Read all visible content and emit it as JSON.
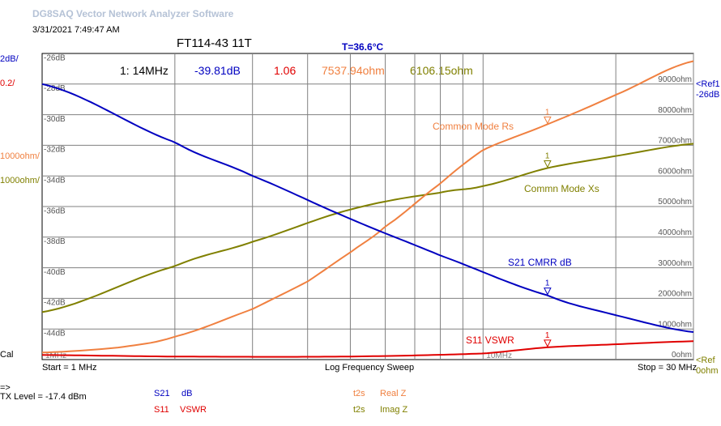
{
  "app": {
    "title": "DG8SAQ Vector Network Analyzer Software",
    "datetime": "3/31/2021   7:49:47 AM"
  },
  "chart": {
    "title": "FT114-43 11T",
    "temperature": "T=36.6°C"
  },
  "marker_readout": {
    "label": "1: 14MHz",
    "s21": "-39.81dB",
    "vswr": "1.06",
    "real_z": "7537.94ohm",
    "imag_z": "6106.15ohm"
  },
  "left_scales": {
    "s21_scale": "2dB/",
    "vswr_scale": "0.2/",
    "real_scale": "1000ohm/",
    "imag_scale": "1000ohm/",
    "cal": "Cal"
  },
  "right_scales": {
    "ref1": "<Ref1",
    "ref1_value": "-26dB",
    "ref2": "<Ref",
    "ref2_value": "0ohm"
  },
  "axis": {
    "start": "Start = 1 MHz",
    "sweep": "Log Frequency Sweep",
    "stop": "Stop = 30 MHz",
    "mid_tick_1": "1MHz",
    "mid_tick_10": "10MHz"
  },
  "footer": {
    "arrow": "=>",
    "tx_level": "TX Level = -17.4 dBm",
    "trace1_param": "S21",
    "trace1_unit": "dB",
    "trace2_param": "S11",
    "trace2_unit": "VSWR",
    "trace3_param": "t2s",
    "trace3_unit": "Real Z",
    "trace4_param": "t2s",
    "trace4_unit": "Imag Z"
  },
  "colors": {
    "s21": "#0000c0",
    "vswr": "#e00000",
    "real": "#f08040",
    "imag": "#808000",
    "grid": "#808080"
  },
  "chart_data": {
    "type": "line",
    "x_scale": "log",
    "xlim_mhz": [
      1,
      30
    ],
    "y_left_ticks_db": [
      "-26dB",
      "-28dB",
      "-30dB",
      "-32dB",
      "-34dB",
      "-36dB",
      "-38dB",
      "-40dB",
      "-42dB",
      "-44dB"
    ],
    "y_right_ticks_ohm": [
      "9000ohm",
      "8000ohm",
      "7000ohm",
      "6000ohm",
      "5000ohm",
      "4000ohm",
      "3000ohm",
      "2000ohm",
      "1000ohm",
      "0ohm"
    ],
    "series": [
      {
        "name": "S21 CMRR dB",
        "unit": "dB",
        "x_mhz": [
          1,
          2,
          3,
          5,
          8,
          14,
          20,
          30
        ],
        "values": [
          -26.0,
          -29.8,
          -32.0,
          -34.8,
          -37.2,
          -39.8,
          -41.1,
          -42.2
        ]
      },
      {
        "name": "S11 VSWR",
        "unit": "",
        "x_mhz": [
          1,
          2,
          5,
          10,
          14,
          20,
          30
        ],
        "values": [
          1.01,
          1.0,
          1.0,
          1.02,
          1.06,
          1.08,
          1.1
        ]
      },
      {
        "name": "Common Mode Rs",
        "unit": "ohm",
        "x_mhz": [
          1,
          1.5,
          2,
          3,
          4,
          5,
          6,
          8,
          10,
          14,
          20,
          30
        ],
        "values": [
          80,
          250,
          600,
          1500,
          2400,
          3350,
          4200,
          5600,
          6700,
          7538,
          8500,
          9600
        ]
      },
      {
        "name": "Commn Mode Xs",
        "unit": "ohm",
        "x_mhz": [
          1,
          2,
          3,
          5,
          8,
          10,
          14,
          20,
          30
        ],
        "values": [
          1400,
          2900,
          3700,
          4750,
          5300,
          5520,
          6106,
          6500,
          6900
        ]
      }
    ],
    "marker": {
      "label": "1",
      "x_mhz": 14
    }
  }
}
